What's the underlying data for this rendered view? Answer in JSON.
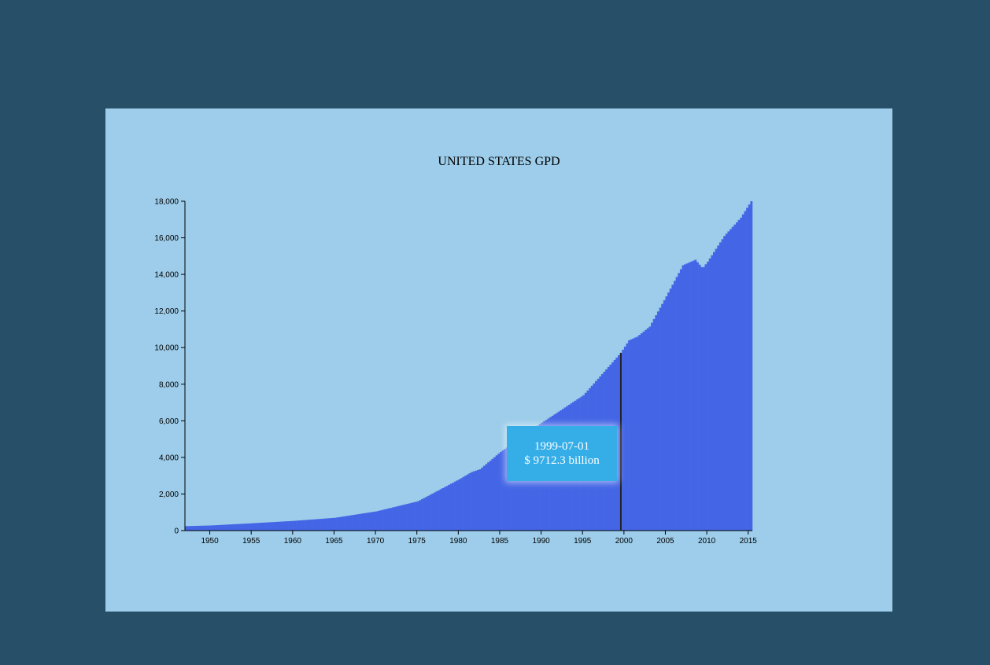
{
  "colors": {
    "page_background": "#275068",
    "card_background": "#9dcdea",
    "bar_fill": "#4466e6",
    "highlight_line": "#222222",
    "tooltip_background": "#35aee8",
    "tooltip_text": "#ffffff"
  },
  "tooltip": {
    "date": "1999-07-01",
    "value_text": "$ 9712.3 billion"
  },
  "chart_data": {
    "type": "bar",
    "title": "UNITED STATES GPD",
    "xlabel": "",
    "ylabel": "",
    "ylim": [
      0,
      18000
    ],
    "xlim": [
      1947.0,
      2015.5
    ],
    "y_ticks": [
      0,
      2000,
      4000,
      6000,
      8000,
      10000,
      12000,
      14000,
      16000,
      18000
    ],
    "y_tick_labels": [
      "0",
      "2,000",
      "4,000",
      "6,000",
      "8,000",
      "10,000",
      "12,000",
      "14,000",
      "16,000",
      "18,000"
    ],
    "x_ticks": [
      1950,
      1955,
      1960,
      1965,
      1970,
      1975,
      1980,
      1985,
      1990,
      1995,
      2000,
      2005,
      2010,
      2015
    ],
    "x_tick_labels": [
      "1950",
      "1955",
      "1960",
      "1965",
      "1970",
      "1975",
      "1980",
      "1985",
      "1990",
      "1995",
      "2000",
      "2005",
      "2010",
      "2015"
    ],
    "grid": false,
    "legend": "none",
    "bar_frequency": "quarterly",
    "highlighted_point": {
      "date": "1999-07-01",
      "value": 9712.3
    },
    "series": [
      {
        "x": [
          1947,
          1950,
          1955,
          1960,
          1965,
          1970,
          1975,
          1980,
          1981.5,
          1982.5,
          1985,
          1990,
          1995,
          1999.5,
          2000.5,
          2001.5,
          2003,
          2005,
          2007,
          2008.5,
          2009.25,
          2009.5,
          2010,
          2012,
          2014,
          2015.25
        ],
        "values": [
          243,
          280,
          400,
          530,
          700,
          1050,
          1600,
          2800,
          3200,
          3350,
          4300,
          5900,
          7400,
          9712.3,
          10400,
          10600,
          11150,
          12800,
          14500,
          14800,
          14400,
          14400,
          14700,
          16100,
          17100,
          18000
        ]
      }
    ]
  }
}
